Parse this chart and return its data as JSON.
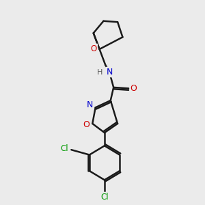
{
  "background_color": "#ebebeb",
  "atom_colors": {
    "C": "#000000",
    "N": "#0000cc",
    "O": "#cc0000",
    "Cl": "#009900",
    "H": "#555555"
  },
  "bond_color": "#1a1a1a",
  "bond_width": 1.8,
  "figsize": [
    3.0,
    3.0
  ],
  "dpi": 100
}
